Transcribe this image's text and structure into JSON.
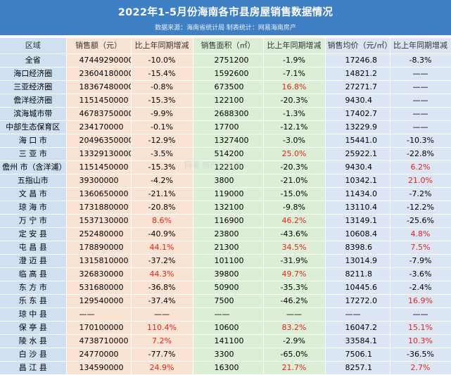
{
  "header": {
    "title": "2022年1-5月份海南各市县房屋销售数据情况",
    "source": "数据来源：海南省统计局  制表统计：网易海南房产"
  },
  "columns": [
    "区域",
    "销售额（元）",
    "比上年同期增减",
    "销售面积（㎡）",
    "比上年同期增减",
    "销售均价（元/㎡）",
    "比上年同期增减"
  ],
  "rows": [
    {
      "region": "全省",
      "amount": "47449290000",
      "amount_chg": "-10.0%",
      "area": "2751200",
      "area_chg": "-1.9%",
      "price": "17246.8",
      "price_chg": "-8.3%"
    },
    {
      "region": "海口经济圈",
      "amount": "23604180000",
      "amount_chg": "-15.4%",
      "area": "1592600",
      "area_chg": "-7.1%",
      "price": "14821.2",
      "price_chg": "——"
    },
    {
      "region": "三亚经济圈",
      "amount": "18367480000",
      "amount_chg": "-0.8%",
      "area": "673500",
      "area_chg": "16.8%",
      "price": "27271.7",
      "price_chg": "——"
    },
    {
      "region": "儋洋经济圈",
      "amount": "1151450000",
      "amount_chg": "-15.3%",
      "area": "122100",
      "area_chg": "-20.3%",
      "price": "9430.4",
      "price_chg": "——"
    },
    {
      "region": "滨海城市带",
      "amount": "46783750000",
      "amount_chg": "-9.9%",
      "area": "2688300",
      "area_chg": "-1.3%",
      "price": "17402.7",
      "price_chg": "——"
    },
    {
      "region": "中部生态保育区",
      "amount": "234170000",
      "amount_chg": "-0.1%",
      "area": "17700",
      "area_chg": "-12.1%",
      "price": "13229.9",
      "price_chg": "——"
    },
    {
      "region": "海 口 市",
      "amount": "20496350000",
      "amount_chg": "-12.9%",
      "area": "1327400",
      "area_chg": "-3.0%",
      "price": "15441.0",
      "price_chg": "-10.3%"
    },
    {
      "region": "三 亚 市",
      "amount": "13329130000",
      "amount_chg": "-3.5%",
      "area": "514200",
      "area_chg": "25.0%",
      "price": "25922.1",
      "price_chg": "-22.8%"
    },
    {
      "region": "儋州 市（含洋浦）",
      "amount": "1151450000",
      "amount_chg": "-15.3%",
      "area": "122100",
      "area_chg": "-20.3%",
      "price": "9430.4",
      "price_chg": "6.2%"
    },
    {
      "region": "五指山市",
      "amount": "39300000",
      "amount_chg": "-4.2%",
      "area": "3800",
      "area_chg": "-21.0%",
      "price": "10342.1",
      "price_chg": "21.0%"
    },
    {
      "region": "文 昌 市",
      "amount": "1360650000",
      "amount_chg": "-21.1%",
      "area": "119000",
      "area_chg": "-15.0%",
      "price": "11434.0",
      "price_chg": "-7.2%"
    },
    {
      "region": "琼 海 市",
      "amount": "1731880000",
      "amount_chg": "-20.8%",
      "area": "132100",
      "area_chg": "-9.8%",
      "price": "13110.4",
      "price_chg": "-12.2%"
    },
    {
      "region": "万 宁 市",
      "amount": "1537130000",
      "amount_chg": "8.6%",
      "area": "116900",
      "area_chg": "46.2%",
      "price": "13149.1",
      "price_chg": "-25.6%"
    },
    {
      "region": "定 安 县",
      "amount": "252480000",
      "amount_chg": "-40.9%",
      "area": "23800",
      "area_chg": "-43.6%",
      "price": "10608.4",
      "price_chg": "4.8%"
    },
    {
      "region": "屯 昌 县",
      "amount": "178890000",
      "amount_chg": "44.1%",
      "area": "21300",
      "area_chg": "34.5%",
      "price": "8398.6",
      "price_chg": "7.5%"
    },
    {
      "region": "澄 迈 县",
      "amount": "1315810000",
      "amount_chg": "-37.2%",
      "area": "101100",
      "area_chg": "-31.9%",
      "price": "13014.9",
      "price_chg": "-7.9%"
    },
    {
      "region": "临 高 县",
      "amount": "326830000",
      "amount_chg": "44.3%",
      "area": "39800",
      "area_chg": "49.7%",
      "price": "8211.8",
      "price_chg": "-3.6%"
    },
    {
      "region": "东 方 市",
      "amount": "531680000",
      "amount_chg": "-36.8%",
      "area": "50900",
      "area_chg": "-35.3%",
      "price": "10445.6",
      "price_chg": "-2.4%"
    },
    {
      "region": "乐 东 县",
      "amount": "129540000",
      "amount_chg": "-37.4%",
      "area": "7500",
      "area_chg": "-46.2%",
      "price": "17272.0",
      "price_chg": "16.9%"
    },
    {
      "region": "琼 中 县",
      "amount": "——",
      "amount_chg": "——",
      "area": "——",
      "area_chg": "——",
      "price": "——",
      "price_chg": "——"
    },
    {
      "region": "保 亭 县",
      "amount": "170100000",
      "amount_chg": "110.4%",
      "area": "10600",
      "area_chg": "83.2%",
      "price": "16047.2",
      "price_chg": "15.1%"
    },
    {
      "region": "陵 水 县",
      "amount": "4738710000",
      "amount_chg": "7.2%",
      "area": "141100",
      "area_chg": "-2.9%",
      "price": "33584.1",
      "price_chg": "10.3%"
    },
    {
      "region": "白 沙 县",
      "amount": "24770000",
      "amount_chg": "-77.7%",
      "area": "3300",
      "area_chg": "-65.0%",
      "price": "7506.1",
      "price_chg": "-36.5%"
    },
    {
      "region": "昌 江 县",
      "amount": "134590000",
      "amount_chg": "24.9%",
      "area": "16300",
      "area_chg": "21.7%",
      "price": "8257.1",
      "price_chg": "2.7%"
    }
  ],
  "watermark": "网易 房产 | 海南",
  "colors": {
    "header": "#3f7fc4",
    "positive": "#e42419"
  }
}
